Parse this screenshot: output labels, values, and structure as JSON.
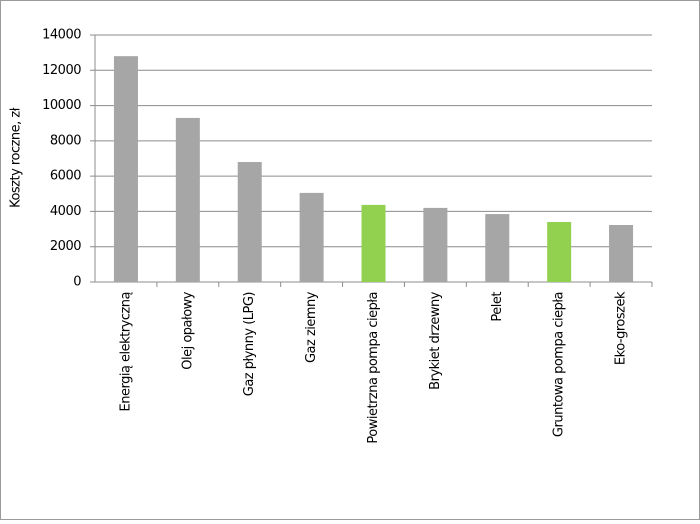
{
  "chart_data": {
    "type": "bar",
    "y_label": "Koszty roczne, zł",
    "categories": [
      "Energią elektryczną",
      "Olej opałowy",
      "Gaz płynny (LPG)",
      "Gaz ziemny",
      "Powietrzna pompa ciepła",
      "Brykiet drzewny",
      "Pelet",
      "Gruntowa pompa ciepła",
      "Eko-groszek"
    ],
    "values": [
      12800,
      9300,
      6800,
      5050,
      4370,
      4200,
      3850,
      3400,
      3230
    ],
    "colors": [
      "#a6a6a6",
      "#a6a6a6",
      "#a6a6a6",
      "#a6a6a6",
      "#92d050",
      "#a6a6a6",
      "#a6a6a6",
      "#92d050",
      "#a6a6a6"
    ],
    "ylim": [
      0,
      14000
    ],
    "yticks": [
      0,
      2000,
      4000,
      6000,
      8000,
      10000,
      12000,
      14000
    ],
    "grid": true
  }
}
